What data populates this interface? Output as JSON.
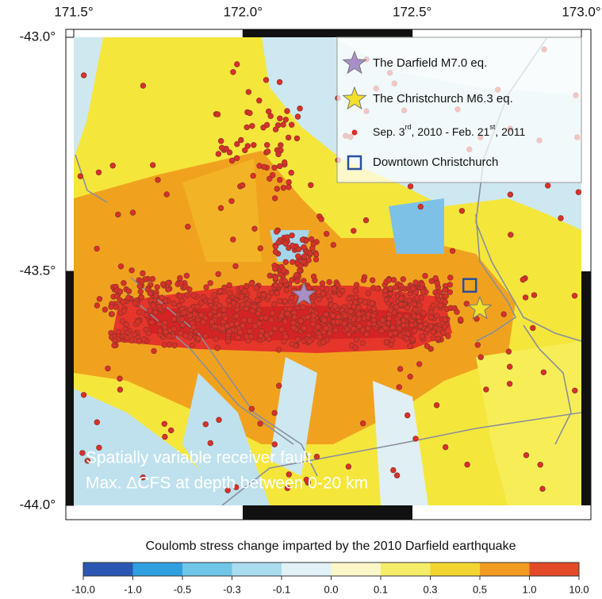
{
  "map": {
    "xticks": [
      {
        "value": 171.5,
        "label": "171.5°"
      },
      {
        "value": 172.0,
        "label": "172.0°"
      },
      {
        "value": 172.5,
        "label": "172.5°"
      },
      {
        "value": 173.0,
        "label": "173.0°"
      }
    ],
    "yticks": [
      {
        "value": -43.0,
        "label": "-43.0°"
      },
      {
        "value": -43.5,
        "label": "-43.5°"
      },
      {
        "value": -44.0,
        "label": "-44.0°"
      }
    ],
    "xlim": [
      171.5,
      173.0
    ],
    "ylim": [
      -44.0,
      -43.0
    ],
    "features": [
      {
        "name": "The Darfield M7.0 eq.",
        "lon": 172.18,
        "lat": -43.55,
        "color": "#a98fc9"
      },
      {
        "name": "The Christchurch M6.3 eq.",
        "lon": 172.7,
        "lat": -43.58,
        "color": "#f2e02a"
      },
      {
        "name": "Downtown Christchurch",
        "lon": 172.67,
        "lat": -43.53,
        "color": "#2a4fa0"
      }
    ],
    "seismicity_label": [
      "Sep. 3",
      "rd",
      ", 2010 - Feb. 21",
      "st",
      ", 2011"
    ],
    "annotation": [
      "Spatially variable receiver fault",
      "Max. ΔCFS at depth between 0-20 km"
    ]
  },
  "colorbar": {
    "title": "Coulomb stress change imparted by the 2010 Darfield earthquake",
    "ticks": [
      {
        "value": -10,
        "label": "-10.0"
      },
      {
        "value": -1,
        "label": "-1.0"
      },
      -0.5,
      -0.3,
      -0.1,
      {
        "value": 0,
        "label": "0.0"
      },
      0.1,
      0.3,
      0.5,
      {
        "value": 1,
        "label": "1.0"
      },
      {
        "value": 10,
        "label": "10.0"
      }
    ]
  }
}
